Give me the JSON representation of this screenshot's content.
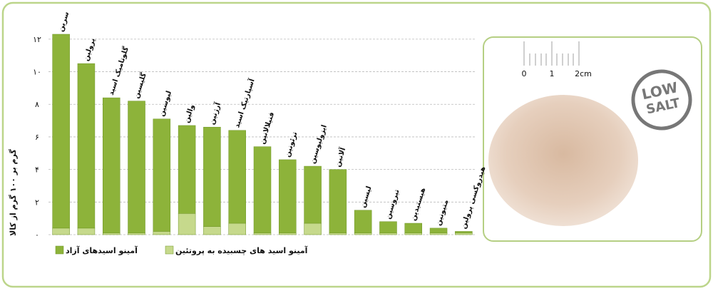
{
  "chart_data": {
    "type": "bar",
    "stacked": true,
    "y_label": "گرم بر ۱۰۰ گرم از کالا",
    "categories": [
      "سرین",
      "پرولین",
      "گلوتامیک اسید",
      "گلیسین",
      "لیوسین",
      "والین",
      "آرژنین",
      "آسپارتیک اسید",
      "فنیلالانین",
      "ترئونین",
      "ایزولیوسین",
      "آلانین",
      "لیسین",
      "تیروسین",
      "هیستیدین",
      "متیونین",
      "هیدروکسی پرولین"
    ],
    "series": [
      {
        "name": "آمینو اسید های چسبیده به پروتئین",
        "color": "#c6d98c",
        "values": [
          0.4,
          0.4,
          0.1,
          0.1,
          0.2,
          1.3,
          0.5,
          0.7,
          0.1,
          0.1,
          0.7,
          0.1,
          0.1,
          0.1,
          0.1,
          0.1,
          0.1
        ]
      },
      {
        "name": "آمینو اسیدهای آزاد",
        "color": "#8db33a",
        "values": [
          11.9,
          10.1,
          8.3,
          8.1,
          6.9,
          5.4,
          6.1,
          5.7,
          5.3,
          4.5,
          3.5,
          3.9,
          1.4,
          0.7,
          0.6,
          0.3,
          0.1
        ]
      }
    ],
    "ylim": [
      0,
      12.3
    ],
    "yticks": [
      {
        "value": 0,
        "label": "۰"
      },
      {
        "value": 2,
        "label": "۲"
      },
      {
        "value": 4,
        "label": "۴"
      },
      {
        "value": 6,
        "label": "۶"
      },
      {
        "value": 8,
        "label": "۸"
      },
      {
        "value": 10,
        "label": "۱۰"
      },
      {
        "value": 12,
        "label": "۱۲"
      }
    ],
    "grid": true
  },
  "image": {
    "ruler_labels": [
      "0",
      "1",
      "2cm"
    ],
    "logo": [
      "LOW",
      "SALT"
    ]
  }
}
